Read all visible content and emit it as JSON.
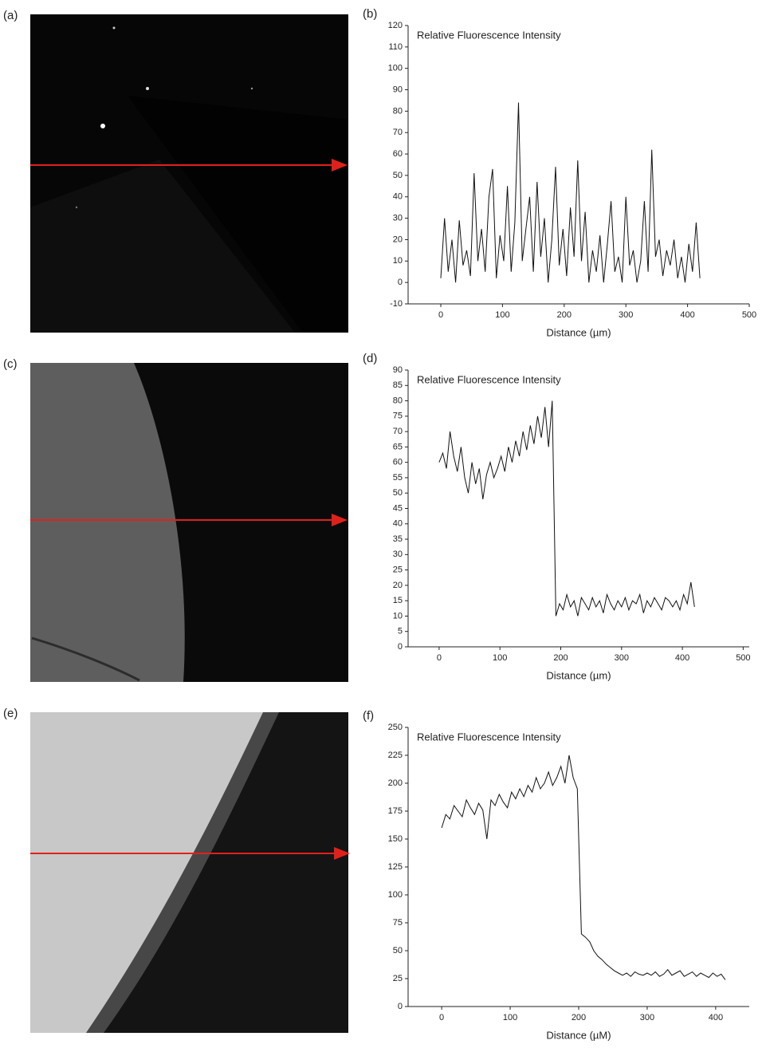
{
  "images": [
    {
      "label": "(a)"
    },
    {
      "label": "(c)"
    },
    {
      "label": "(e)"
    }
  ],
  "chart_data": [
    {
      "type": "line",
      "panel_label": "(b)",
      "title": "Relative Fluorescence Intensity",
      "x_label": "Distance (µm)",
      "xlim": [
        -53,
        500
      ],
      "xticks": [
        0,
        100,
        200,
        300,
        400,
        500
      ],
      "ylim": [
        -10,
        120
      ],
      "yticks": [
        -10,
        0,
        10,
        20,
        30,
        40,
        50,
        60,
        70,
        80,
        90,
        100,
        110,
        120
      ],
      "x": [
        0,
        6,
        12,
        18,
        24,
        30,
        36,
        42,
        48,
        54,
        60,
        66,
        72,
        78,
        84,
        90,
        96,
        102,
        108,
        114,
        120,
        126,
        132,
        138,
        144,
        150,
        156,
        162,
        168,
        174,
        180,
        186,
        192,
        198,
        204,
        210,
        216,
        222,
        228,
        234,
        240,
        246,
        252,
        258,
        264,
        270,
        276,
        282,
        288,
        294,
        300,
        306,
        312,
        318,
        324,
        330,
        336,
        342,
        348,
        354,
        360,
        366,
        372,
        378,
        384,
        390,
        396,
        402,
        408,
        414,
        420
      ],
      "series": [
        {
          "color": "#111111",
          "values": [
            2,
            30,
            5,
            20,
            0,
            29,
            8,
            15,
            3,
            51,
            10,
            25,
            5,
            40,
            53,
            2,
            22,
            10,
            45,
            5,
            28,
            84,
            10,
            25,
            40,
            5,
            47,
            12,
            30,
            0,
            20,
            54,
            8,
            25,
            3,
            35,
            12,
            57,
            10,
            33,
            0,
            15,
            5,
            22,
            0,
            18,
            38,
            5,
            12,
            0,
            40,
            8,
            15,
            0,
            10,
            38,
            5,
            62,
            12,
            20,
            3,
            15,
            8,
            20,
            2,
            12,
            0,
            18,
            5,
            28,
            2
          ]
        }
      ]
    },
    {
      "type": "line",
      "panel_label": "(d)",
      "title": "Relative Fluorescence Intensity",
      "x_label": "Distance (µm)",
      "xlim": [
        -51,
        510
      ],
      "xticks": [
        0,
        100,
        200,
        300,
        400,
        500
      ],
      "ylim": [
        0,
        90
      ],
      "yticks": [
        0,
        5,
        10,
        15,
        20,
        25,
        30,
        35,
        40,
        45,
        50,
        55,
        60,
        65,
        70,
        75,
        80,
        85,
        90
      ],
      "x": [
        0,
        6,
        12,
        18,
        24,
        30,
        36,
        42,
        48,
        54,
        60,
        66,
        72,
        78,
        84,
        90,
        96,
        102,
        108,
        114,
        120,
        126,
        132,
        138,
        144,
        150,
        156,
        162,
        168,
        174,
        180,
        186,
        192,
        198,
        204,
        210,
        216,
        222,
        228,
        234,
        240,
        246,
        252,
        258,
        264,
        270,
        276,
        282,
        288,
        294,
        300,
        306,
        312,
        318,
        324,
        330,
        336,
        342,
        348,
        354,
        360,
        366,
        372,
        378,
        384,
        390,
        396,
        402,
        408,
        414,
        420
      ],
      "series": [
        {
          "color": "#111111",
          "values": [
            60,
            63,
            58,
            70,
            62,
            57,
            65,
            55,
            50,
            60,
            53,
            58,
            48,
            56,
            60,
            55,
            58,
            62,
            57,
            65,
            60,
            67,
            62,
            70,
            64,
            72,
            66,
            75,
            68,
            78,
            65,
            80,
            10,
            14,
            12,
            17,
            13,
            15,
            10,
            16,
            14,
            12,
            16,
            13,
            15,
            11,
            17,
            14,
            12,
            15,
            13,
            16,
            12,
            15,
            14,
            17,
            11,
            15,
            13,
            16,
            14,
            12,
            16,
            15,
            13,
            15,
            12,
            17,
            14,
            21,
            13
          ]
        }
      ]
    },
    {
      "type": "line",
      "panel_label": "(f)",
      "title": "Relative Fluorescence Intensity",
      "x_label": "Distance (µM)",
      "xlim": [
        -49,
        449
      ],
      "xticks": [
        0,
        100,
        200,
        300,
        400
      ],
      "ylim": [
        0,
        250
      ],
      "yticks": [
        0,
        25,
        50,
        75,
        100,
        125,
        150,
        175,
        200,
        225,
        250
      ],
      "x": [
        0,
        6,
        12,
        18,
        24,
        30,
        36,
        42,
        48,
        54,
        60,
        66,
        72,
        78,
        84,
        90,
        96,
        102,
        108,
        114,
        120,
        126,
        132,
        138,
        144,
        150,
        156,
        162,
        168,
        174,
        180,
        186,
        192,
        198,
        204,
        210,
        216,
        222,
        228,
        234,
        240,
        246,
        252,
        258,
        264,
        270,
        276,
        282,
        288,
        294,
        300,
        306,
        312,
        318,
        324,
        330,
        336,
        342,
        348,
        354,
        360,
        366,
        372,
        378,
        384,
        390,
        396,
        402,
        408,
        414
      ],
      "series": [
        {
          "color": "#111111",
          "values": [
            160,
            172,
            168,
            180,
            175,
            170,
            185,
            178,
            172,
            182,
            176,
            150,
            185,
            180,
            190,
            183,
            178,
            192,
            186,
            195,
            188,
            198,
            192,
            205,
            195,
            200,
            210,
            198,
            205,
            215,
            200,
            225,
            205,
            195,
            65,
            62,
            58,
            50,
            45,
            42,
            38,
            35,
            32,
            30,
            28,
            30,
            27,
            31,
            29,
            28,
            30,
            28,
            31,
            27,
            29,
            33,
            28,
            30,
            32,
            27,
            29,
            31,
            27,
            30,
            28,
            26,
            30,
            27,
            29,
            24
          ]
        }
      ]
    }
  ]
}
